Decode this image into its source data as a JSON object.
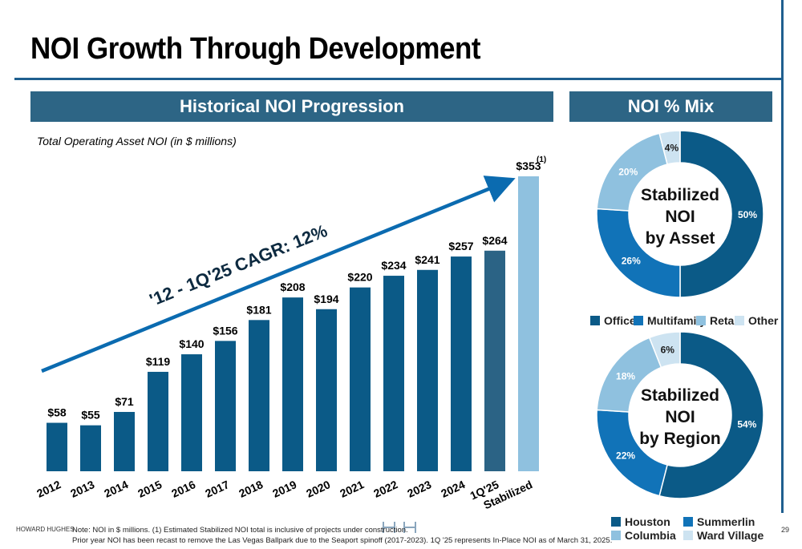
{
  "header": {
    "title": "NOI Growth Through Development"
  },
  "banners": {
    "historical": "Historical NOI Progression",
    "mix": "NOI % Mix"
  },
  "chart_data": [
    {
      "type": "bar",
      "subtitle": "Total Operating Asset NOI (in $ millions)",
      "categories": [
        "2012",
        "2013",
        "2014",
        "2015",
        "2016",
        "2017",
        "2018",
        "2019",
        "2020",
        "2021",
        "2022",
        "2023",
        "2024",
        "1Q'25",
        "Stabilized"
      ],
      "values": [
        58,
        55,
        71,
        119,
        140,
        156,
        181,
        208,
        194,
        220,
        234,
        241,
        257,
        264,
        353
      ],
      "data_labels": [
        "$58",
        "$55",
        "$71",
        "$119",
        "$140",
        "$156",
        "$181",
        "$208",
        "$194",
        "$220",
        "$234",
        "$241",
        "$257",
        "$264",
        "$353"
      ],
      "footnote_marker": "(1)",
      "annotation": "'12 - 1Q'25 CAGR: 12%",
      "colors": {
        "historical": "#0b5a87",
        "current": "#2b6385",
        "stabilized": "#8fc1df"
      },
      "grid": false
    },
    {
      "type": "pie",
      "center_label": [
        "Stabilized",
        "NOI",
        "by Asset"
      ],
      "categories": [
        "Office",
        "Multifamily",
        "Retail",
        "Other"
      ],
      "values": [
        50,
        26,
        20,
        4
      ],
      "labels": [
        "50%",
        "26%",
        "20%",
        "4%"
      ],
      "colors": [
        "#0b5a87",
        "#1173b8",
        "#8fc1df",
        "#cde3f1"
      ]
    },
    {
      "type": "pie",
      "center_label": [
        "Stabilized",
        "NOI",
        "by Region"
      ],
      "categories": [
        "Houston",
        "Summerlin",
        "Columbia",
        "Ward Village"
      ],
      "values": [
        54,
        22,
        18,
        6
      ],
      "labels": [
        "54%",
        "22%",
        "18%",
        "6%"
      ],
      "colors": [
        "#0b5a87",
        "#1173b8",
        "#8fc1df",
        "#cde3f1"
      ]
    }
  ],
  "footer": {
    "brand": "HOWARD HUGHES",
    "note_line1": "Note: NOI in $ millions. (1) Estimated Stabilized NOI total is inclusive of projects under construction.",
    "note_line2": "Prior year NOI has been recast to remove the Las Vegas Ballpark due to the Seaport spinoff (2017-2023). 1Q '25 represents In-Place NOI as of March 31, 2025.",
    "page_number": "29"
  }
}
